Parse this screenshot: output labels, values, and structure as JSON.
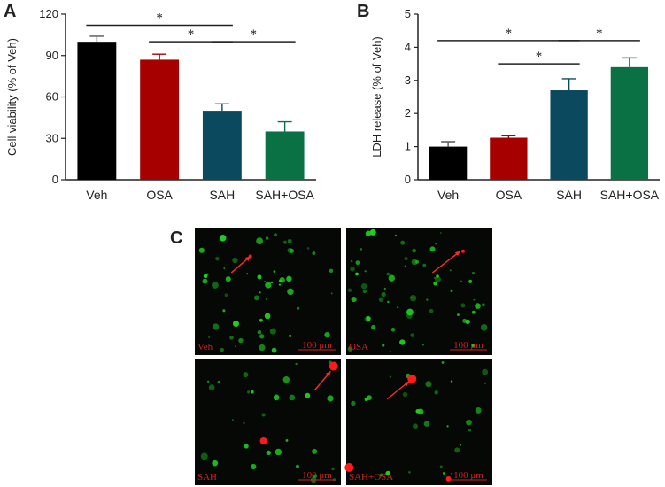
{
  "figure": {
    "panel_labels": [
      "A",
      "B",
      "C"
    ]
  },
  "chart_data": [
    {
      "type": "bar",
      "panel": "A",
      "title": "",
      "xlabel": "",
      "ylabel": "Cell viability (% of Veh)",
      "categories": [
        "Veh",
        "OSA",
        "SAH",
        "SAH+OSA"
      ],
      "values": [
        100,
        87,
        50,
        35
      ],
      "errors": [
        4,
        4,
        5,
        7
      ],
      "colors": [
        "#000000",
        "#a60000",
        "#0b4a5e",
        "#0a7145"
      ],
      "ylim": [
        0,
        120
      ],
      "yticks": [
        0,
        30,
        60,
        90,
        120
      ],
      "significance": [
        {
          "from": 0,
          "to": 2,
          "y": 112,
          "label": "*"
        },
        {
          "from": 1,
          "to": 2,
          "y": 100,
          "label": "*"
        },
        {
          "from": 2,
          "to": 3,
          "y": 100,
          "label": "*"
        }
      ]
    },
    {
      "type": "bar",
      "panel": "B",
      "title": "",
      "xlabel": "",
      "ylabel": "LDH release (% of Veh)",
      "categories": [
        "Veh",
        "OSA",
        "SAH",
        "SAH+OSA"
      ],
      "values": [
        1.0,
        1.27,
        2.7,
        3.4
      ],
      "errors": [
        0.15,
        0.06,
        0.35,
        0.28
      ],
      "colors": [
        "#000000",
        "#a60000",
        "#0b4a5e",
        "#0a7145"
      ],
      "ylim": [
        0,
        5
      ],
      "yticks": [
        0,
        1,
        2,
        3,
        4,
        5
      ],
      "significance": [
        {
          "from": 0,
          "to": 2,
          "y": 4.2,
          "label": "*"
        },
        {
          "from": 2,
          "to": 3,
          "y": 4.2,
          "label": "*"
        },
        {
          "from": 1,
          "to": 2,
          "y": 3.5,
          "label": "*"
        }
      ]
    }
  ],
  "micrographs": {
    "panel": "C",
    "scale_bar": "100 μm",
    "images": [
      {
        "label": "Veh"
      },
      {
        "label": "OSA"
      },
      {
        "label": "SAH"
      },
      {
        "label": "SAH+OSA"
      }
    ],
    "colors": {
      "live": "#1fd11f",
      "dead": "#ff1a1a",
      "background": "#050805"
    }
  }
}
